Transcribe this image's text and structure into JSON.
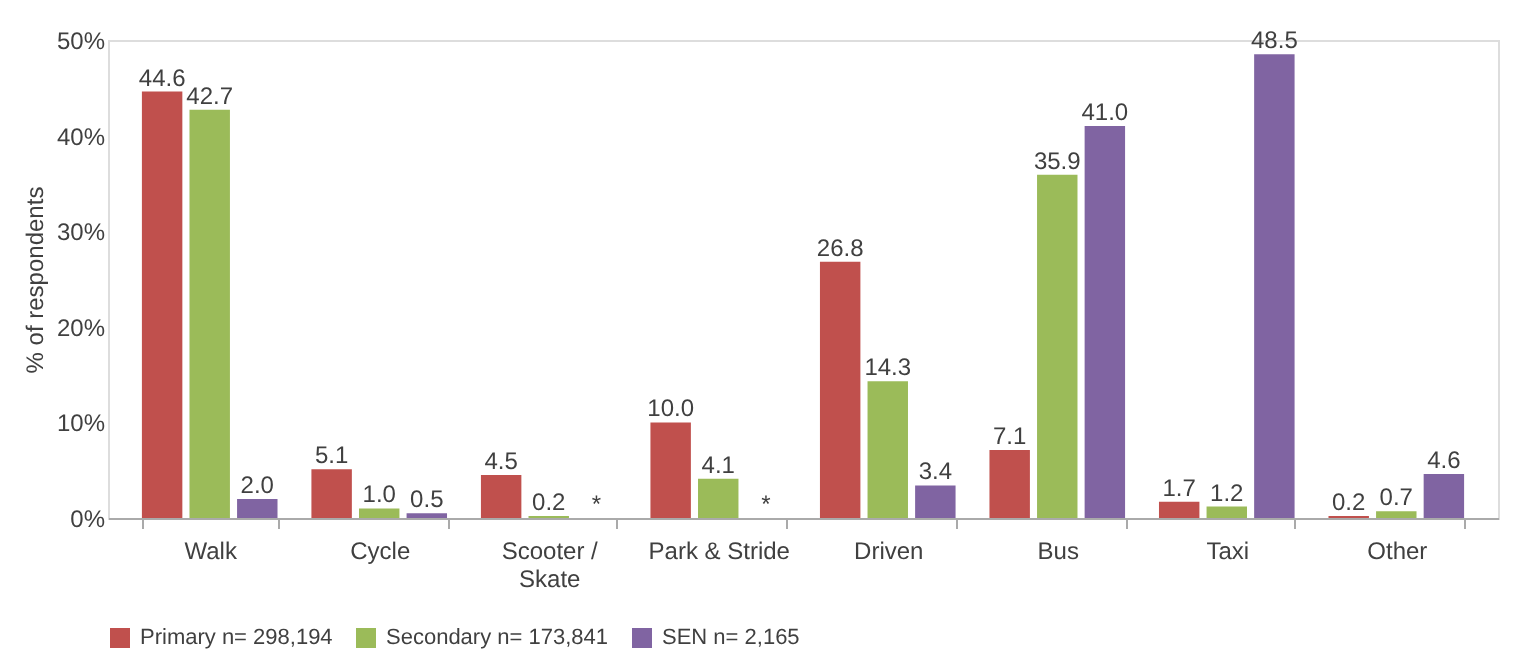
{
  "chart_data": {
    "type": "bar",
    "ylabel": "% of respondents",
    "categories": [
      "Walk",
      "Cycle",
      "Scooter / Skate",
      "Park & Stride",
      "Driven",
      "Bus",
      "Taxi",
      "Other"
    ],
    "series": [
      {
        "name": "Primary n= 298,194",
        "color": "#c0504d",
        "values": [
          44.6,
          5.1,
          4.5,
          10.0,
          26.8,
          7.1,
          1.7,
          0.2
        ],
        "value_labels": [
          "44.6",
          "5.1",
          "4.5",
          "10.0",
          "26.8",
          "7.1",
          "1.7",
          "0.2"
        ]
      },
      {
        "name": "Secondary n= 173,841",
        "color": "#9bbb59",
        "values": [
          42.7,
          1.0,
          0.2,
          4.1,
          14.3,
          35.9,
          1.2,
          0.7
        ],
        "value_labels": [
          "42.7",
          "1.0",
          "0.2",
          "4.1",
          "14.3",
          "35.9",
          "1.2",
          "0.7"
        ]
      },
      {
        "name": "SEN n= 2,165",
        "color": "#8064a2",
        "values": [
          2.0,
          0.5,
          null,
          null,
          3.4,
          41.0,
          48.5,
          4.6
        ],
        "value_labels": [
          "2.0",
          "0.5",
          "*",
          "*",
          "3.4",
          "41.0",
          "48.5",
          "4.6"
        ]
      }
    ],
    "ylim": [
      0,
      50
    ],
    "yticks": [
      {
        "value": 0,
        "label": "0%"
      },
      {
        "value": 10,
        "label": "10%"
      },
      {
        "value": 20,
        "label": "20%"
      },
      {
        "value": 30,
        "label": "30%"
      },
      {
        "value": 40,
        "label": "40%"
      },
      {
        "value": 50,
        "label": "50%"
      }
    ],
    "grid": false,
    "legend": "bottom"
  }
}
